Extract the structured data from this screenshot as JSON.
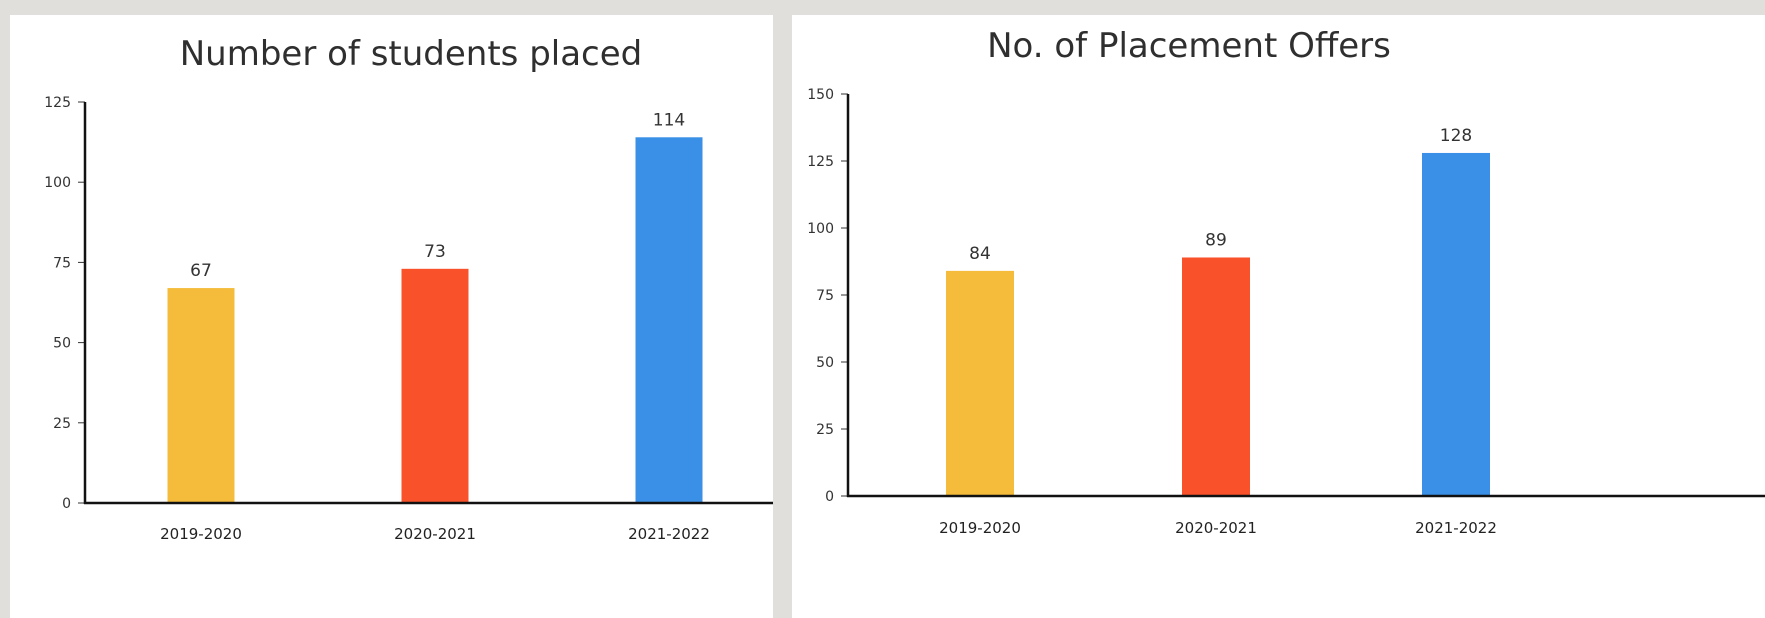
{
  "colors": {
    "background": "#e0dfdc",
    "panel": "#ffffff",
    "bar_2019_2020": "#f4bc3a",
    "bar_2020_2021": "#f9522a",
    "bar_2021_2022": "#3a8fe6"
  },
  "chart_data": [
    {
      "type": "bar",
      "title": "Number of students placed",
      "categories": [
        "2019-2020",
        "2020-2021",
        "2021-2022"
      ],
      "values": [
        67,
        73,
        114
      ],
      "data_labels": [
        "67",
        "73",
        "114"
      ],
      "ylim": [
        0,
        125
      ],
      "yticks": [
        0,
        25,
        50,
        75,
        100,
        125
      ],
      "ytick_labels": [
        "0",
        "25",
        "50",
        "75",
        "100",
        "125"
      ],
      "xlabel": "",
      "ylabel": "",
      "grid": false,
      "legend": "none"
    },
    {
      "type": "bar",
      "title": "No. of Placement Offers",
      "categories": [
        "2019-2020",
        "2020-2021",
        "2021-2022"
      ],
      "values": [
        84,
        89,
        128
      ],
      "data_labels": [
        "84",
        "89",
        "128"
      ],
      "ylim": [
        0,
        150
      ],
      "yticks": [
        0,
        25,
        50,
        75,
        100,
        125,
        150
      ],
      "ytick_labels": [
        "0",
        "25",
        "50",
        "75",
        "100",
        "125",
        "150"
      ],
      "xlabel": "",
      "ylabel": "",
      "grid": false,
      "legend": "none"
    }
  ]
}
